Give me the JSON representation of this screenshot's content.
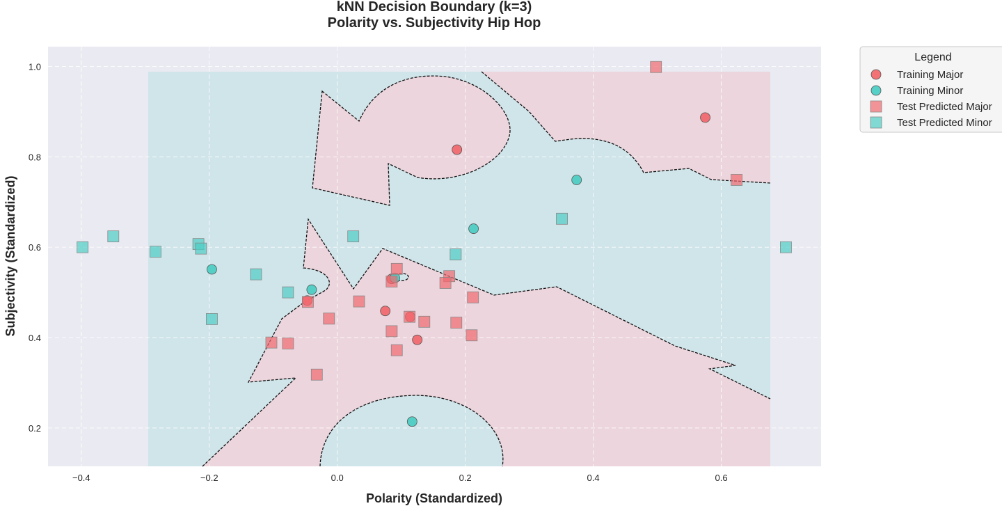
{
  "chart_data": {
    "type": "scatter",
    "title": "kNN Decision Boundary (k=3)",
    "subtitle": "Polarity vs. Subjectivity Hip Hop",
    "xlabel": "Polarity (Standardized)",
    "ylabel": "Subjectivity (Standardized)",
    "xlim": [
      -0.452,
      0.756
    ],
    "ylim": [
      0.115,
      1.044
    ],
    "xticks": [
      -0.4,
      -0.2,
      0.0,
      0.2,
      0.4,
      0.6
    ],
    "xtick_labels": [
      "−0.4",
      "−0.2",
      "0.0",
      "0.2",
      "0.4",
      "0.6"
    ],
    "yticks": [
      0.2,
      0.4,
      0.6,
      0.8,
      1.0
    ],
    "ytick_labels": [
      "0.2",
      "0.4",
      "0.6",
      "0.8",
      "1.0"
    ],
    "grid": true,
    "decision_region_x": [
      -0.295,
      0.675
    ],
    "decision_region_y": [
      0.115,
      0.988
    ],
    "region_colors": {
      "major": "#ecd5dc",
      "minor": "#d0e5ea",
      "background": "#eaeaf2"
    },
    "colors": {
      "major": "#f16a6f",
      "minor": "#4ecdc4"
    },
    "legend": {
      "title": "Legend",
      "position": "outside-top-right",
      "entries": [
        "Training Major",
        "Training Minor",
        "Test Predicted Major",
        "Test Predicted Minor"
      ]
    },
    "series": [
      {
        "name": "Training Major",
        "marker": "circle",
        "points": [
          [
            0.187,
            0.816
          ],
          [
            0.575,
            0.887
          ],
          [
            -0.047,
            0.482
          ],
          [
            0.075,
            0.459
          ],
          [
            0.114,
            0.446
          ],
          [
            0.125,
            0.395
          ],
          [
            0.085,
            0.53
          ]
        ]
      },
      {
        "name": "Training Minor",
        "marker": "circle",
        "points": [
          [
            0.374,
            0.749
          ],
          [
            0.213,
            0.641
          ],
          [
            -0.196,
            0.551
          ],
          [
            -0.04,
            0.506
          ],
          [
            0.09,
            0.532
          ],
          [
            0.117,
            0.214
          ]
        ]
      },
      {
        "name": "Test Predicted Major",
        "marker": "square",
        "points": [
          [
            0.498,
            0.999
          ],
          [
            0.624,
            0.749
          ],
          [
            0.093,
            0.552
          ],
          [
            0.085,
            0.524
          ],
          [
            0.175,
            0.536
          ],
          [
            0.169,
            0.521
          ],
          [
            0.034,
            0.48
          ],
          [
            -0.046,
            0.479
          ],
          [
            0.212,
            0.489
          ],
          [
            -0.013,
            0.442
          ],
          [
            0.113,
            0.446
          ],
          [
            0.136,
            0.435
          ],
          [
            0.186,
            0.433
          ],
          [
            0.085,
            0.414
          ],
          [
            0.21,
            0.405
          ],
          [
            -0.103,
            0.389
          ],
          [
            -0.077,
            0.387
          ],
          [
            0.093,
            0.372
          ],
          [
            -0.032,
            0.318
          ]
        ]
      },
      {
        "name": "Test Predicted Minor",
        "marker": "square",
        "points": [
          [
            -0.398,
            0.6
          ],
          [
            -0.35,
            0.624
          ],
          [
            -0.284,
            0.59
          ],
          [
            -0.217,
            0.607
          ],
          [
            -0.213,
            0.597
          ],
          [
            -0.127,
            0.54
          ],
          [
            -0.077,
            0.5
          ],
          [
            -0.196,
            0.441
          ],
          [
            0.025,
            0.624
          ],
          [
            0.185,
            0.584
          ],
          [
            0.351,
            0.663
          ],
          [
            0.701,
            0.6
          ]
        ]
      }
    ]
  }
}
